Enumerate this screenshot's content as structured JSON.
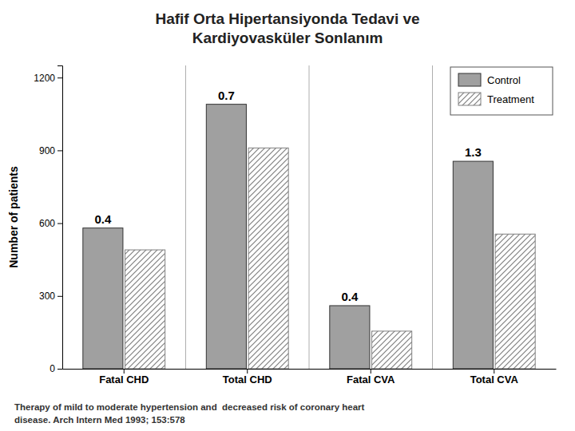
{
  "chart_data": {
    "type": "bar",
    "title": [
      "Hafif Orta Hipertansiyonda Tedavi ve",
      "Kardiyovasküler Sonlanım"
    ],
    "categories": [
      "Fatal CHD",
      "Total CHD",
      "Fatal CVA",
      "Total CVA"
    ],
    "series": [
      {
        "name": "Control",
        "color": "#a0a0a0",
        "values": [
          580,
          1090,
          260,
          855
        ]
      },
      {
        "name": "Treatment",
        "color": "#ffffff",
        "values": [
          490,
          910,
          155,
          555
        ]
      }
    ],
    "annotations": [
      "0.4",
      "0.7",
      "0.4",
      "1.3"
    ],
    "ylabel": "Number of patients",
    "ylim": [
      0,
      1250
    ],
    "yticks": [
      0,
      300,
      600,
      900,
      1200
    ],
    "legend": "upper right",
    "grid": false,
    "footer": [
      "Therapy of mild to moderate hypertension and  decreased risk of coronary heart",
      "disease. Arch Intern Med 1993; 153:578"
    ]
  }
}
